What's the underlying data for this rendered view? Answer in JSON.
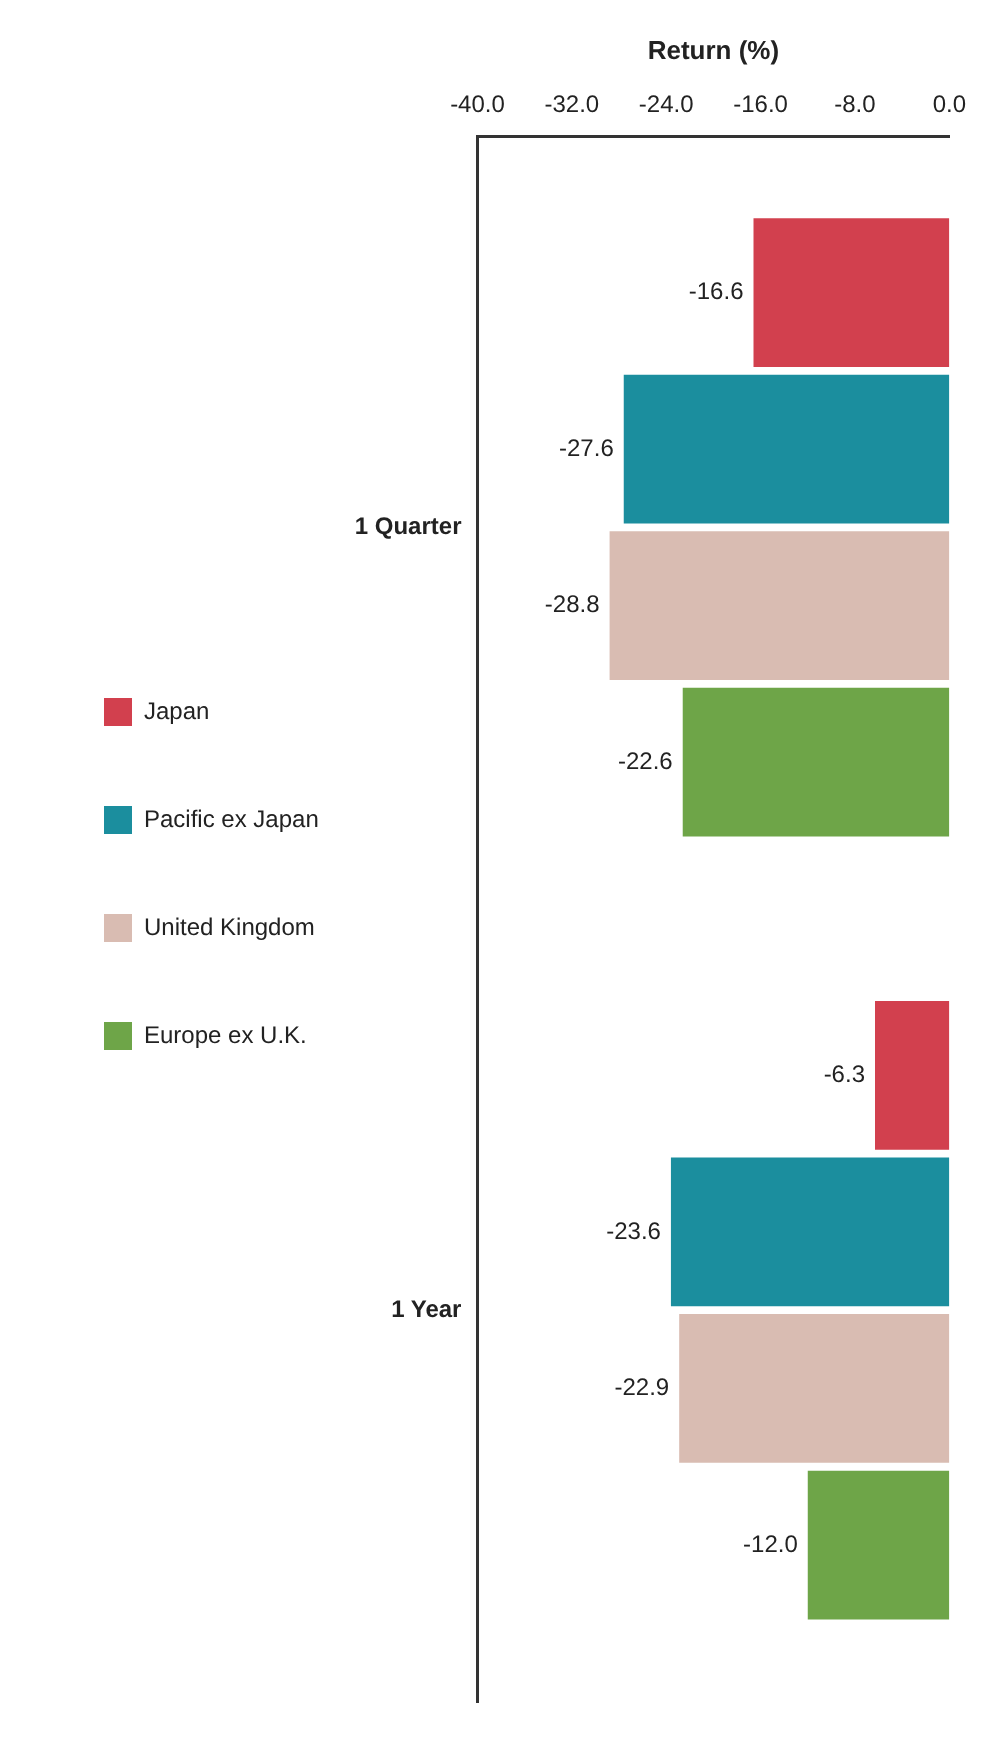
{
  "chart_data": {
    "type": "bar",
    "orientation": "horizontal",
    "xlabel": "Return (%)",
    "categories": [
      "1 Quarter",
      "1 Year"
    ],
    "series": [
      {
        "name": "Japan",
        "color": "#d2404e",
        "values": [
          -16.6,
          -6.3
        ],
        "value_labels": [
          "-16.6",
          "-6.3"
        ]
      },
      {
        "name": "Pacific ex Japan",
        "color": "#1b8e9e",
        "values": [
          -27.6,
          -23.6
        ],
        "value_labels": [
          "-27.6",
          "-23.6"
        ]
      },
      {
        "name": "United Kingdom",
        "color": "#d9bcb2",
        "values": [
          -28.8,
          -22.9
        ],
        "value_labels": [
          "-28.8",
          "-22.9"
        ]
      },
      {
        "name": "Europe ex U.K.",
        "color": "#6ea548",
        "values": [
          -22.6,
          -12.0
        ],
        "value_labels": [
          "-22.6",
          "-12.0"
        ]
      }
    ],
    "xlim": [
      -40,
      0
    ],
    "xticks": [
      {
        "value": -40,
        "label": "-40.0"
      },
      {
        "value": -32,
        "label": "-32.0"
      },
      {
        "value": -24,
        "label": "-24.0"
      },
      {
        "value": -16,
        "label": "-16.0"
      },
      {
        "value": -8,
        "label": "-8.0"
      },
      {
        "value": 0,
        "label": "0.0"
      }
    ],
    "legend": "left"
  }
}
